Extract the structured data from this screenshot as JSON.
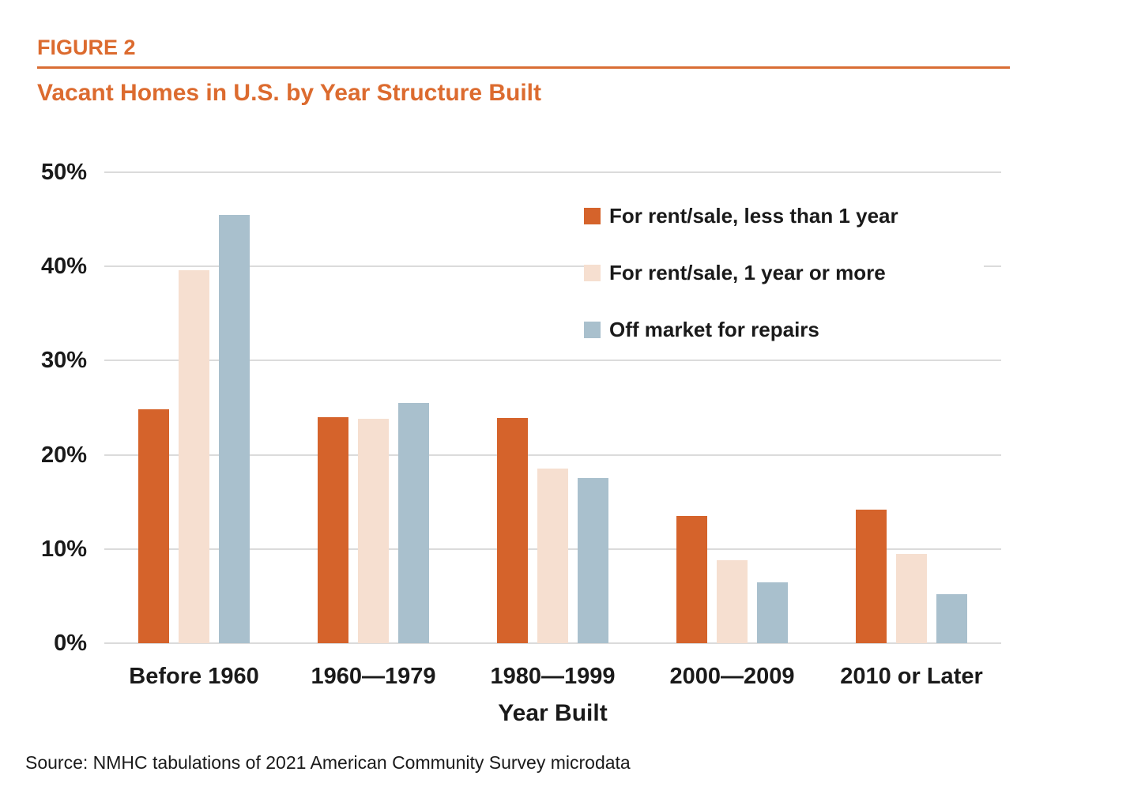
{
  "figure": {
    "label": "FIGURE 2",
    "title": "Vacant Homes in U.S. by Year Structure Built"
  },
  "chart_data": {
    "type": "bar",
    "categories": [
      "Before 1960",
      "1960—1979",
      "1980—1999",
      "2000—2009",
      "2010 or Later"
    ],
    "series": [
      {
        "name": "For rent/sale, less than 1 year",
        "color": "#D5632B",
        "values": [
          24.8,
          24.0,
          23.9,
          13.5,
          14.2
        ]
      },
      {
        "name": "For rent/sale, 1 year or more",
        "color": "#F6DFD0",
        "values": [
          39.6,
          23.8,
          18.5,
          8.8,
          9.5
        ]
      },
      {
        "name": "Off market for repairs",
        "color": "#A9C0CD",
        "values": [
          45.5,
          25.5,
          17.5,
          6.5,
          5.2
        ]
      }
    ],
    "title": "Vacant Homes in U.S. by Year Structure Built",
    "xlabel": "Year Built",
    "ylabel": "",
    "ylim": [
      0,
      50
    ],
    "yticks": [
      {
        "value": 0,
        "label": "0%"
      },
      {
        "value": 10,
        "label": "10%"
      },
      {
        "value": 20,
        "label": "20%"
      },
      {
        "value": 30,
        "label": "30%"
      },
      {
        "value": 40,
        "label": "40%"
      },
      {
        "value": 50,
        "label": "50%"
      }
    ],
    "grid": true,
    "legend_position": "upper right"
  },
  "source": "Source: NMHC tabulations of 2021 American Community Survey microdata",
  "colors": {
    "heading_orange": "#DC6B2F",
    "rule_orange": "#D96D33",
    "bar_orange": "#D5632B",
    "bar_pink": "#F6DFD0",
    "bar_blue": "#A9C0CD",
    "gridline_gray": "#DBDBDB",
    "label_text": "#1A1A1A"
  }
}
